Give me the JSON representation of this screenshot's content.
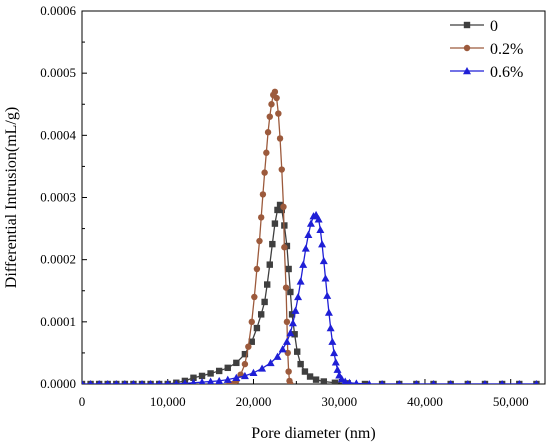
{
  "chart_data": {
    "type": "line",
    "title": "",
    "xlabel": "Pore diameter (nm)",
    "ylabel": "Differential Intrusion(mL/g)",
    "xlim": [
      0,
      54000
    ],
    "ylim": [
      0,
      0.0006
    ],
    "x_ticks": [
      "0",
      "10,000",
      "20,000",
      "30,000",
      "40,000",
      "50,000"
    ],
    "x_tick_values": [
      0,
      10000,
      20000,
      30000,
      40000,
      50000
    ],
    "y_ticks": [
      "0.0000",
      "0.0001",
      "0.0002",
      "0.0003",
      "0.0004",
      "0.0005",
      "0.0006"
    ],
    "y_tick_values": [
      0,
      0.0001,
      0.0002,
      0.0003,
      0.0004,
      0.0005,
      0.0006
    ],
    "grid": false,
    "legend_position": "top-right",
    "series": [
      {
        "name": "0",
        "color": "#3f3f3f",
        "marker": "square",
        "points": [
          [
            0,
            0
          ],
          [
            1000,
            0
          ],
          [
            2000,
            0
          ],
          [
            3000,
            0
          ],
          [
            4000,
            0
          ],
          [
            5000,
            0
          ],
          [
            6000,
            0
          ],
          [
            7000,
            0
          ],
          [
            8000,
            0
          ],
          [
            9000,
            0
          ],
          [
            10000,
            0
          ],
          [
            11000,
            2e-06
          ],
          [
            12000,
            5e-06
          ],
          [
            13000,
            1e-05
          ],
          [
            14000,
            1.3e-05
          ],
          [
            15000,
            1.7e-05
          ],
          [
            16000,
            2.1e-05
          ],
          [
            17000,
            2.6e-05
          ],
          [
            18000,
            3.4e-05
          ],
          [
            19000,
            4.8e-05
          ],
          [
            19800,
            6.8e-05
          ],
          [
            20400,
            9e-05
          ],
          [
            20900,
            0.000112
          ],
          [
            21300,
            0.000132
          ],
          [
            21600,
            0.00016
          ],
          [
            21900,
            0.000192
          ],
          [
            22200,
            0.000225
          ],
          [
            22500,
            0.000258
          ],
          [
            22800,
            0.00028
          ],
          [
            23100,
            0.000288
          ],
          [
            23300,
            0.00028
          ],
          [
            23600,
            0.000255
          ],
          [
            23900,
            0.000222
          ],
          [
            24100,
            0.000185
          ],
          [
            24300,
            0.000148
          ],
          [
            24500,
            0.000112
          ],
          [
            24800,
            8e-05
          ],
          [
            25100,
            5.2e-05
          ],
          [
            25500,
            3.2e-05
          ],
          [
            26000,
            2e-05
          ],
          [
            26600,
            1.2e-05
          ],
          [
            27300,
            7e-06
          ],
          [
            28200,
            4e-06
          ],
          [
            29500,
            2e-06
          ],
          [
            31000,
            1e-06
          ],
          [
            33000,
            0
          ],
          [
            35000,
            0
          ],
          [
            37000,
            0
          ],
          [
            39000,
            0
          ],
          [
            41000,
            0
          ],
          [
            43000,
            0
          ],
          [
            45000,
            0
          ],
          [
            47000,
            0
          ],
          [
            49000,
            0
          ],
          [
            51000,
            0
          ],
          [
            53000,
            0
          ]
        ]
      },
      {
        "name": "0.2%",
        "color": "#9c5a3c",
        "marker": "circle",
        "points": [
          [
            17200,
            0
          ],
          [
            17600,
            0
          ],
          [
            18000,
            5e-06
          ],
          [
            18500,
            1.5e-05
          ],
          [
            19000,
            3.2e-05
          ],
          [
            19400,
            6e-05
          ],
          [
            19800,
            0.0001
          ],
          [
            20100,
            0.00014
          ],
          [
            20400,
            0.000185
          ],
          [
            20700,
            0.00023
          ],
          [
            20900,
            0.000268
          ],
          [
            21100,
            0.000305
          ],
          [
            21300,
            0.00034
          ],
          [
            21500,
            0.000372
          ],
          [
            21700,
            0.000405
          ],
          [
            21900,
            0.00043
          ],
          [
            22100,
            0.00045
          ],
          [
            22300,
            0.000465
          ],
          [
            22500,
            0.00047
          ],
          [
            22700,
            0.00046
          ],
          [
            22900,
            0.000435
          ],
          [
            23100,
            0.000395
          ],
          [
            23300,
            0.000345
          ],
          [
            23500,
            0.000285
          ],
          [
            23600,
            0.00022
          ],
          [
            23800,
            0.000155
          ],
          [
            23900,
            0.0001
          ],
          [
            24000,
            5e-05
          ],
          [
            24100,
            2e-05
          ],
          [
            24200,
            5e-06
          ],
          [
            24300,
            0
          ]
        ]
      },
      {
        "name": "0.6%",
        "color": "#1f1fd6",
        "marker": "triangle",
        "points": [
          [
            0,
            0
          ],
          [
            1000,
            0
          ],
          [
            2000,
            0
          ],
          [
            3000,
            0
          ],
          [
            4000,
            0
          ],
          [
            5000,
            0
          ],
          [
            6000,
            0
          ],
          [
            7000,
            0
          ],
          [
            8000,
            0
          ],
          [
            9000,
            0
          ],
          [
            10000,
            0
          ],
          [
            11000,
            0
          ],
          [
            12000,
            1e-06
          ],
          [
            13000,
            2e-06
          ],
          [
            14000,
            3e-06
          ],
          [
            15000,
            4e-06
          ],
          [
            16000,
            5e-06
          ],
          [
            17000,
            7e-06
          ],
          [
            18000,
            1e-05
          ],
          [
            19000,
            1.3e-05
          ],
          [
            20000,
            1.8e-05
          ],
          [
            21000,
            2.5e-05
          ],
          [
            22000,
            3.4e-05
          ],
          [
            22800,
            4.4e-05
          ],
          [
            23400,
            5.6e-05
          ],
          [
            23900,
            6.8e-05
          ],
          [
            24300,
            8.2e-05
          ],
          [
            24600,
            9.8e-05
          ],
          [
            24900,
            0.000118
          ],
          [
            25200,
            0.00014
          ],
          [
            25500,
            0.000165
          ],
          [
            25800,
            0.000192
          ],
          [
            26100,
            0.000218
          ],
          [
            26400,
            0.00024
          ],
          [
            26700,
            0.000258
          ],
          [
            27000,
            0.00027
          ],
          [
            27300,
            0.000272
          ],
          [
            27600,
            0.000265
          ],
          [
            27800,
            0.000248
          ],
          [
            28000,
            0.000225
          ],
          [
            28200,
            0.000198
          ],
          [
            28400,
            0.00017
          ],
          [
            28600,
            0.000142
          ],
          [
            28800,
            0.000115
          ],
          [
            29000,
            9e-05
          ],
          [
            29200,
            6.8e-05
          ],
          [
            29400,
            5e-05
          ],
          [
            29600,
            3.5e-05
          ],
          [
            29800,
            2.3e-05
          ],
          [
            30000,
            1.4e-05
          ],
          [
            30300,
            8e-06
          ],
          [
            30700,
            4e-06
          ],
          [
            31200,
            2e-06
          ],
          [
            32000,
            1e-06
          ],
          [
            33500,
            0
          ],
          [
            35000,
            0
          ],
          [
            37000,
            0
          ],
          [
            39000,
            0
          ],
          [
            41000,
            0
          ],
          [
            43000,
            0
          ],
          [
            45000,
            0
          ],
          [
            47000,
            0
          ],
          [
            49000,
            0
          ],
          [
            51000,
            0
          ],
          [
            53000,
            0
          ]
        ]
      }
    ]
  }
}
